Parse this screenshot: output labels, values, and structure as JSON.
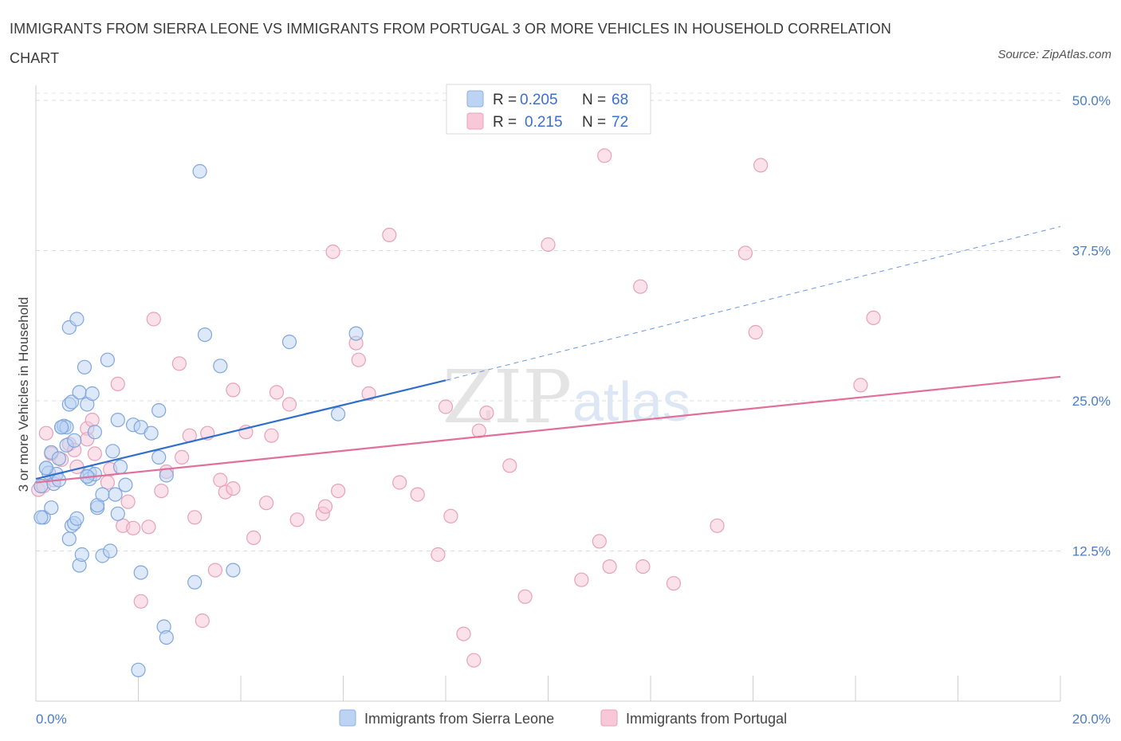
{
  "title": "IMMIGRANTS FROM SIERRA LEONE VS IMMIGRANTS FROM PORTUGAL 3 OR MORE VEHICLES IN HOUSEHOLD CORRELATION CHART",
  "source": "Source: ZipAtlas.com",
  "watermark": {
    "zip": "ZIP",
    "atlas": "atlas"
  },
  "colors": {
    "sierra_leone": "#8fb6e8",
    "sierra_leone_line": "#2f6fcb",
    "portugal": "#f1a7c0",
    "portugal_line": "#e0709a",
    "tick": "#4a7cc9"
  },
  "legend": {
    "series": [
      {
        "r_label": "R =",
        "r_value": "0.205",
        "n_label": "N =",
        "n_value": "68"
      },
      {
        "r_label": "R =",
        "r_value": "0.215",
        "n_label": "N =",
        "n_value": "72"
      }
    ]
  },
  "bottom_legend": [
    "Immigrants from Sierra Leone",
    "Immigrants from Portugal"
  ],
  "chart_data": {
    "type": "scatter",
    "xlabel": "",
    "ylabel": "3 or more Vehicles in Household",
    "xlim": [
      0,
      20
    ],
    "ylim": [
      0,
      50
    ],
    "x_tick_labels": [
      "0.0%",
      "20.0%"
    ],
    "y_ticks": [
      12.5,
      25.0,
      37.5,
      50.0
    ],
    "y_tick_labels": [
      "12.5%",
      "25.0%",
      "37.5%",
      "50.0%"
    ],
    "grid": true,
    "legend_placement": "top-center",
    "series": [
      {
        "name": "Immigrants from Sierra Leone",
        "r": 0.205,
        "n": 68,
        "trend": {
          "x": [
            0,
            8
          ],
          "y": [
            18.5,
            26.7
          ],
          "dashed_extension": {
            "x": [
              8,
              20
            ],
            "y": [
              26.7,
              39.5
            ]
          }
        },
        "points": [
          [
            0.1,
            17.9
          ],
          [
            0.15,
            15.3
          ],
          [
            0.2,
            19.4
          ],
          [
            0.25,
            19.0
          ],
          [
            0.3,
            20.7
          ],
          [
            0.3,
            16.1
          ],
          [
            0.35,
            18.1
          ],
          [
            0.4,
            18.9
          ],
          [
            0.45,
            18.4
          ],
          [
            0.45,
            20.2
          ],
          [
            0.5,
            22.8
          ],
          [
            0.55,
            22.9
          ],
          [
            0.6,
            21.3
          ],
          [
            0.6,
            22.8
          ],
          [
            0.65,
            24.7
          ],
          [
            0.65,
            13.5
          ],
          [
            0.7,
            14.6
          ],
          [
            0.65,
            31.1
          ],
          [
            0.75,
            21.7
          ],
          [
            0.7,
            24.9
          ],
          [
            0.75,
            14.8
          ],
          [
            0.8,
            31.8
          ],
          [
            0.8,
            15.2
          ],
          [
            0.85,
            11.3
          ],
          [
            0.85,
            25.7
          ],
          [
            0.9,
            12.2
          ],
          [
            0.95,
            27.8
          ],
          [
            1.0,
            24.7
          ],
          [
            1.0,
            18.7
          ],
          [
            1.05,
            19.0
          ],
          [
            1.05,
            18.5
          ],
          [
            1.1,
            25.6
          ],
          [
            1.15,
            22.4
          ],
          [
            1.15,
            18.9
          ],
          [
            1.2,
            16.1
          ],
          [
            1.2,
            16.3
          ],
          [
            1.3,
            17.2
          ],
          [
            1.3,
            12.1
          ],
          [
            1.4,
            28.4
          ],
          [
            1.45,
            12.5
          ],
          [
            1.5,
            20.8
          ],
          [
            1.55,
            17.2
          ],
          [
            1.6,
            23.4
          ],
          [
            1.6,
            15.6
          ],
          [
            1.65,
            19.5
          ],
          [
            1.75,
            18.0
          ],
          [
            1.9,
            23.0
          ],
          [
            2.05,
            22.8
          ],
          [
            2.0,
            2.6
          ],
          [
            2.05,
            10.7
          ],
          [
            2.25,
            22.3
          ],
          [
            2.4,
            20.3
          ],
          [
            2.4,
            24.2
          ],
          [
            2.5,
            6.2
          ],
          [
            2.55,
            5.3
          ],
          [
            2.55,
            18.8
          ],
          [
            0.5,
            22.8
          ],
          [
            3.1,
            9.9
          ],
          [
            3.2,
            44.1
          ],
          [
            3.3,
            30.5
          ],
          [
            3.6,
            27.9
          ],
          [
            3.85,
            10.9
          ],
          [
            4.95,
            29.9
          ],
          [
            5.9,
            23.9
          ],
          [
            6.25,
            30.6
          ],
          [
            0.1,
            15.3
          ],
          [
            0.2,
            19.4
          ],
          [
            1.0,
            18.7
          ]
        ]
      },
      {
        "name": "Immigrants from Portugal",
        "r": 0.215,
        "n": 72,
        "trend": {
          "x": [
            0,
            20
          ],
          "y": [
            18.2,
            27.0
          ]
        },
        "points": [
          [
            0.05,
            17.6
          ],
          [
            0.15,
            17.9
          ],
          [
            0.2,
            22.3
          ],
          [
            0.3,
            20.6
          ],
          [
            0.35,
            18.4
          ],
          [
            0.5,
            20.1
          ],
          [
            0.65,
            21.4
          ],
          [
            0.75,
            20.9
          ],
          [
            0.8,
            19.5
          ],
          [
            1.0,
            22.7
          ],
          [
            1.0,
            21.8
          ],
          [
            1.1,
            23.4
          ],
          [
            1.15,
            20.6
          ],
          [
            1.4,
            18.2
          ],
          [
            1.45,
            19.3
          ],
          [
            1.6,
            26.4
          ],
          [
            1.7,
            14.6
          ],
          [
            1.8,
            16.6
          ],
          [
            1.9,
            14.4
          ],
          [
            2.05,
            8.3
          ],
          [
            2.2,
            14.5
          ],
          [
            2.3,
            31.8
          ],
          [
            2.45,
            17.5
          ],
          [
            2.55,
            19.1
          ],
          [
            2.8,
            28.1
          ],
          [
            2.85,
            20.3
          ],
          [
            3.0,
            22.1
          ],
          [
            3.1,
            15.3
          ],
          [
            3.25,
            6.7
          ],
          [
            3.35,
            22.3
          ],
          [
            3.5,
            10.9
          ],
          [
            3.6,
            18.4
          ],
          [
            3.7,
            17.4
          ],
          [
            3.85,
            25.9
          ],
          [
            3.85,
            17.7
          ],
          [
            4.1,
            22.4
          ],
          [
            4.25,
            13.6
          ],
          [
            4.5,
            16.5
          ],
          [
            4.6,
            22.1
          ],
          [
            4.7,
            25.7
          ],
          [
            4.95,
            24.7
          ],
          [
            5.1,
            15.1
          ],
          [
            5.6,
            15.6
          ],
          [
            5.65,
            16.2
          ],
          [
            5.8,
            37.4
          ],
          [
            5.9,
            17.5
          ],
          [
            6.25,
            29.8
          ],
          [
            6.3,
            28.4
          ],
          [
            6.5,
            25.6
          ],
          [
            6.9,
            38.8
          ],
          [
            7.1,
            18.2
          ],
          [
            7.45,
            17.2
          ],
          [
            7.85,
            12.2
          ],
          [
            8.0,
            24.5
          ],
          [
            8.1,
            15.4
          ],
          [
            8.35,
            5.6
          ],
          [
            8.55,
            3.4
          ],
          [
            8.65,
            22.5
          ],
          [
            8.8,
            24.0
          ],
          [
            9.25,
            19.6
          ],
          [
            9.55,
            8.7
          ],
          [
            10.0,
            38.0
          ],
          [
            10.65,
            10.1
          ],
          [
            11.0,
            13.3
          ],
          [
            11.1,
            45.4
          ],
          [
            11.2,
            11.2
          ],
          [
            11.8,
            34.5
          ],
          [
            11.85,
            11.2
          ],
          [
            12.45,
            9.8
          ],
          [
            13.3,
            14.6
          ],
          [
            13.85,
            37.3
          ],
          [
            14.05,
            30.7
          ]
        ],
        "extra_points": [
          [
            14.15,
            44.6
          ],
          [
            16.1,
            26.3
          ],
          [
            16.35,
            31.9
          ]
        ]
      }
    ]
  }
}
